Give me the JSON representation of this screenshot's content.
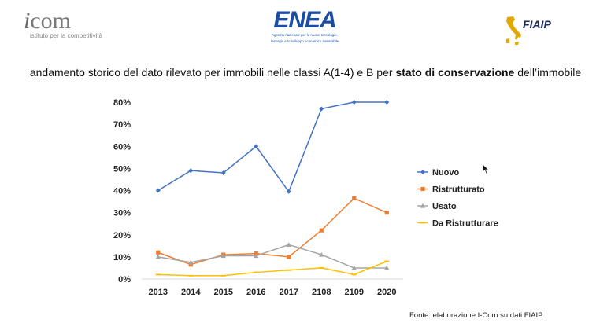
{
  "header": {
    "icom_brand": "com",
    "icom_tagline": "istituto per la competitività",
    "enea_word": "ENEA",
    "enea_sub_1": "Agenzia nazionale per le nuove tecnologie,",
    "enea_sub_2": "l'energia e lo sviluppo economico sostenibile",
    "fiaip_word": "FIAIP"
  },
  "subtitle": {
    "pre": "andamento storico del dato rilevato per immobili nelle classi A(1-4) e B per ",
    "bold": "stato di conservazione",
    "post": " dell’immobile"
  },
  "source": "Fonte: elaborazione I-Com su dati FIAIP",
  "colors": {
    "nuovo": "#4472c4",
    "ristrutturato": "#ed7d31",
    "usato": "#a5a5a5",
    "da_ristrutturare": "#ffc000",
    "grid": "#d9d9d9"
  },
  "chart_data": {
    "type": "line",
    "categories": [
      "2013",
      "2014",
      "2015",
      "2016",
      "2017",
      "2108",
      "2109",
      "2020"
    ],
    "ylim": [
      0,
      80
    ],
    "yticks": [
      "0%",
      "10%",
      "20%",
      "30%",
      "40%",
      "50%",
      "60%",
      "70%",
      "80%"
    ],
    "grid": false,
    "legend_position": "right",
    "series": [
      {
        "name": "Nuovo",
        "color": "#4472c4",
        "marker": "diamond",
        "values": [
          40,
          49,
          48,
          60,
          39.5,
          77,
          80,
          80
        ]
      },
      {
        "name": "Ristrutturato",
        "color": "#ed7d31",
        "marker": "square",
        "values": [
          12,
          6.5,
          11,
          11.5,
          10,
          22,
          36.5,
          30
        ]
      },
      {
        "name": "Usato",
        "color": "#a5a5a5",
        "marker": "triangle",
        "values": [
          10,
          7.5,
          10.5,
          10.5,
          15.5,
          11,
          5,
          5
        ]
      },
      {
        "name": "Da Ristrutturare",
        "color": "#ffc000",
        "marker": "dash",
        "values": [
          2,
          1.5,
          1.5,
          3,
          4,
          5,
          2,
          8
        ]
      }
    ]
  }
}
